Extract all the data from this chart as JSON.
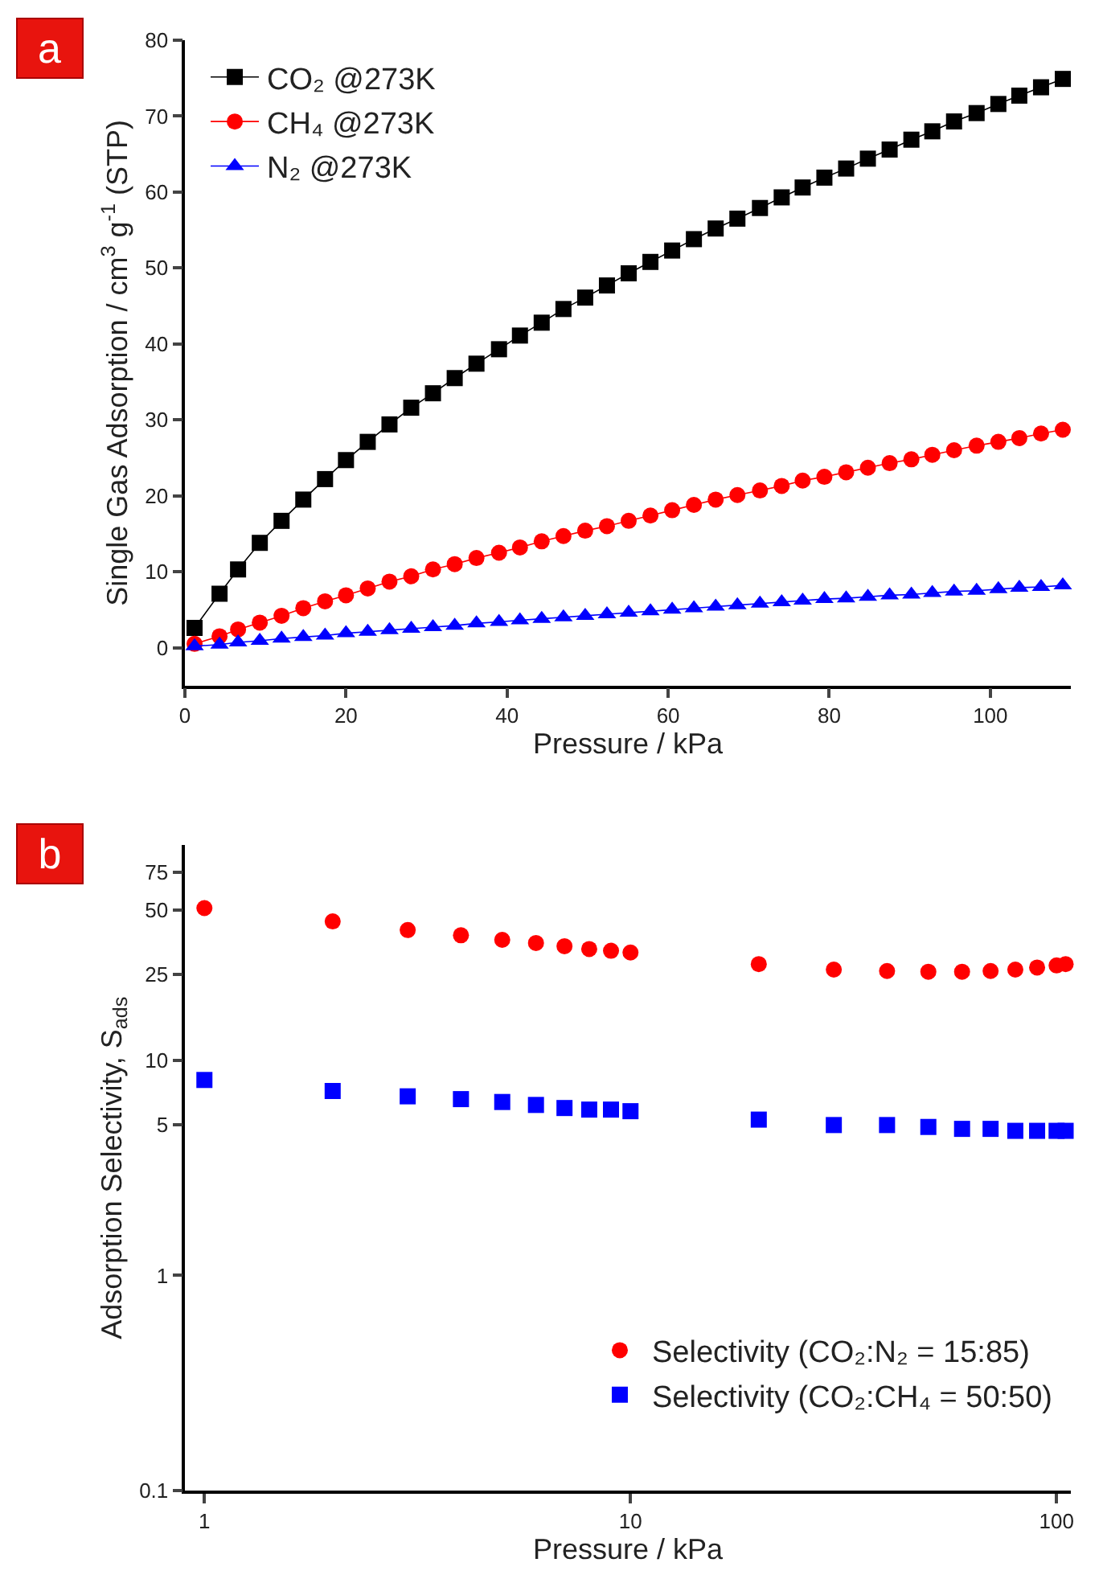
{
  "chart_data": [
    {
      "type": "line",
      "xlabel": "Pressure / kPa",
      "ylabel": "Single Gas Adsorption / cm$^{3}$ g$^{-1}$ (STP)",
      "annotations": [
        "a"
      ],
      "x": [
        1.2,
        4.3,
        6.6,
        9.3,
        12,
        14.7,
        17.4,
        20,
        22.7,
        25.4,
        28.1,
        30.8,
        33.5,
        36.2,
        39,
        41.6,
        44.3,
        47,
        49.7,
        52.4,
        55.1,
        57.8,
        60.5,
        63.2,
        65.9,
        68.6,
        71.4,
        74.1,
        76.7,
        79.4,
        82.1,
        84.8,
        87.5,
        90.2,
        92.8,
        95.5,
        98.3,
        101,
        103.6,
        106.3,
        109
      ],
      "series": [
        {
          "name": "CO₂ @273K",
          "color": "#000000",
          "marker": "square",
          "values": [
            2.6,
            7.1,
            10.3,
            13.8,
            16.7,
            19.5,
            22.2,
            24.7,
            27.1,
            29.4,
            31.6,
            33.5,
            35.5,
            37.4,
            39.3,
            41.1,
            42.8,
            44.6,
            46.1,
            47.7,
            49.3,
            50.8,
            52.3,
            53.8,
            55.2,
            56.5,
            57.9,
            59.3,
            60.6,
            61.9,
            63.1,
            64.4,
            65.6,
            66.9,
            68,
            69.3,
            70.4,
            71.6,
            72.7,
            73.8,
            74.9
          ]
        },
        {
          "name": "CH₄ @273K",
          "color": "#ff0000",
          "marker": "circle",
          "values": [
            0.5,
            1.5,
            2.4,
            3.3,
            4.2,
            5.2,
            6.1,
            6.9,
            7.8,
            8.7,
            9.4,
            10.3,
            11,
            11.8,
            12.5,
            13.2,
            14,
            14.7,
            15.4,
            16,
            16.7,
            17.4,
            18.1,
            18.8,
            19.5,
            20.1,
            20.7,
            21.3,
            22,
            22.5,
            23.1,
            23.7,
            24.3,
            24.8,
            25.4,
            26,
            26.6,
            27.1,
            27.6,
            28.2,
            28.7
          ]
        },
        {
          "name": "N₂ @273K",
          "color": "#0000ff",
          "marker": "triangle",
          "values": [
            0.2,
            0.4,
            0.7,
            0.9,
            1.2,
            1.4,
            1.6,
            1.9,
            2.1,
            2.3,
            2.5,
            2.7,
            2.9,
            3.2,
            3.4,
            3.6,
            3.8,
            4,
            4.2,
            4.4,
            4.6,
            4.8,
            5,
            5.2,
            5.4,
            5.6,
            5.8,
            6,
            6.2,
            6.4,
            6.5,
            6.7,
            6.9,
            7,
            7.2,
            7.4,
            7.5,
            7.7,
            7.9,
            8,
            8.2
          ]
        }
      ],
      "xlim": [
        0,
        110
      ],
      "xticks": [
        0,
        20,
        40,
        60,
        80,
        100
      ],
      "ylim": [
        -5,
        80
      ],
      "yticks": [
        0,
        10,
        20,
        30,
        40,
        50,
        60,
        70,
        80
      ],
      "legend": "top left"
    },
    {
      "type": "scatter",
      "xlabel": "Pressure / kPa",
      "ylabel": "Adsorption Selectivity, S$_{ads}$",
      "annotations": [
        "b"
      ],
      "log": "xy",
      "x": [
        1,
        2,
        3,
        4,
        5,
        6,
        7,
        8,
        9,
        10,
        20,
        30,
        40,
        50,
        60,
        70,
        80,
        90,
        100,
        105
      ],
      "series": [
        {
          "name": "Selectivity (CO₂:N₂ = 15:85)",
          "color": "#ff0000",
          "marker": "circle",
          "values": [
            51,
            44.2,
            40.3,
            38.1,
            36.3,
            35.1,
            33.9,
            32.9,
            32.3,
            31.7,
            28,
            26.4,
            26,
            25.8,
            25.8,
            26,
            26.4,
            27,
            27.6,
            28
          ]
        },
        {
          "name": "Selectivity (CO₂:CH₄ = 50:50)",
          "color": "#0000ff",
          "marker": "square",
          "values": [
            8.1,
            7.2,
            6.8,
            6.6,
            6.4,
            6.2,
            6,
            5.9,
            5.9,
            5.8,
            5.3,
            5,
            5,
            4.9,
            4.8,
            4.8,
            4.7,
            4.7,
            4.7,
            4.7
          ]
        }
      ],
      "xlim": [
        0.9,
        108
      ],
      "xticks": [
        1,
        10,
        100
      ],
      "ylim": [
        0.1,
        100
      ],
      "yticks": [
        0.1,
        1,
        5,
        10,
        25,
        50,
        75
      ],
      "legend": "bottom right"
    }
  ]
}
